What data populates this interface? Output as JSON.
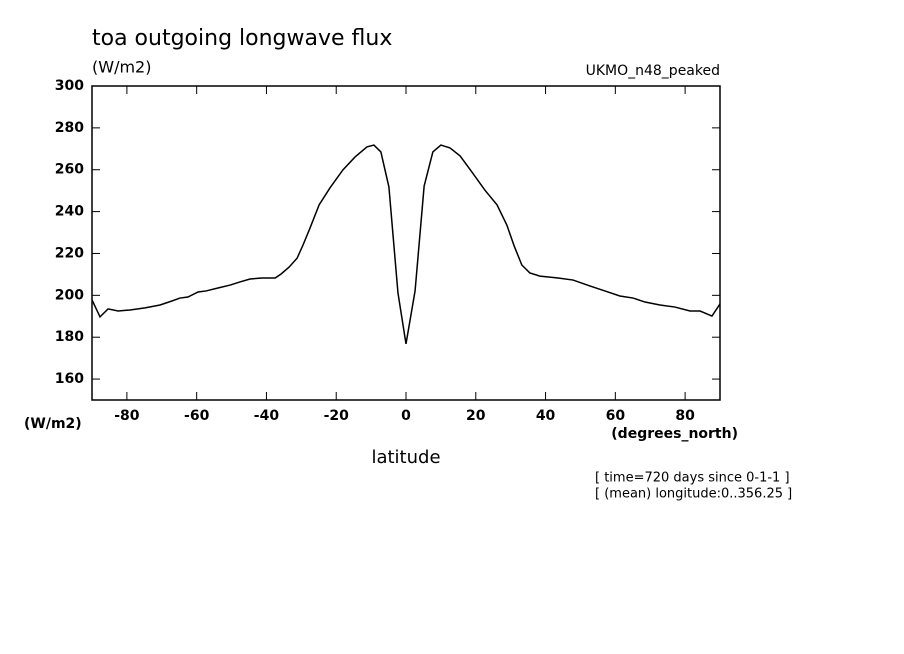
{
  "chart_data": {
    "type": "line",
    "title": "toa outgoing longwave flux",
    "units_label": "(W/m2)",
    "dataset": "UKMO_n48_peaked",
    "y_axis_units": "(W/m2)",
    "x_axis_units": "(degrees_north)",
    "x_label": "latitude",
    "notes": [
      "[ time=720 days since 0-1-1 ]",
      "[ (mean) longitude:0..356.25 ]"
    ],
    "xlim": [
      -90,
      90
    ],
    "ylim": [
      150,
      300
    ],
    "xticks": [
      -80,
      -60,
      -40,
      -20,
      0,
      20,
      40,
      60,
      80
    ],
    "yticks": [
      160,
      180,
      200,
      220,
      240,
      260,
      280,
      300
    ],
    "series": [
      {
        "color": "#000000",
        "x": [
          -90,
          -87.7,
          -85.4,
          -82.5,
          -79.1,
          -74.8,
          -70.5,
          -67.1,
          -64.8,
          -62.5,
          -59.6,
          -57.3,
          -53.9,
          -50.4,
          -47.6,
          -44.7,
          -41.3,
          -37.5,
          -35.8,
          -33.5,
          -31.2,
          -29.5,
          -27.5,
          -24.9,
          -21.8,
          -18.1,
          -14.6,
          -11.2,
          -9.2,
          -7.2,
          -4.9,
          -2.3,
          0,
          2.6,
          5.2,
          7.7,
          10.0,
          12.6,
          15.5,
          18.9,
          22.6,
          26.1,
          28.9,
          31.0,
          33.2,
          35.5,
          38.4,
          43.6,
          47.9,
          52.7,
          57.0,
          61.3,
          65.1,
          68.5,
          72.8,
          77.1,
          81.4,
          84.3,
          87.7,
          90
        ],
        "values": [
          197.8,
          189.7,
          193.5,
          192.5,
          193.0,
          194.0,
          195.4,
          197.3,
          198.7,
          199.2,
          201.6,
          202.1,
          203.5,
          204.9,
          206.4,
          207.8,
          208.3,
          208.3,
          210.2,
          213.5,
          217.8,
          224.1,
          232.2,
          243.2,
          251.3,
          259.9,
          266.1,
          270.9,
          271.8,
          268.5,
          251.8,
          201.1,
          176.8,
          202.1,
          252.2,
          268.5,
          271.8,
          270.4,
          266.6,
          258.9,
          250.3,
          243.2,
          233.6,
          223.6,
          214.5,
          210.7,
          209.2,
          208.3,
          207.3,
          204.5,
          202.1,
          199.7,
          198.7,
          196.8,
          195.4,
          194.4,
          192.5,
          192.5,
          190.1,
          195.9
        ]
      }
    ]
  }
}
